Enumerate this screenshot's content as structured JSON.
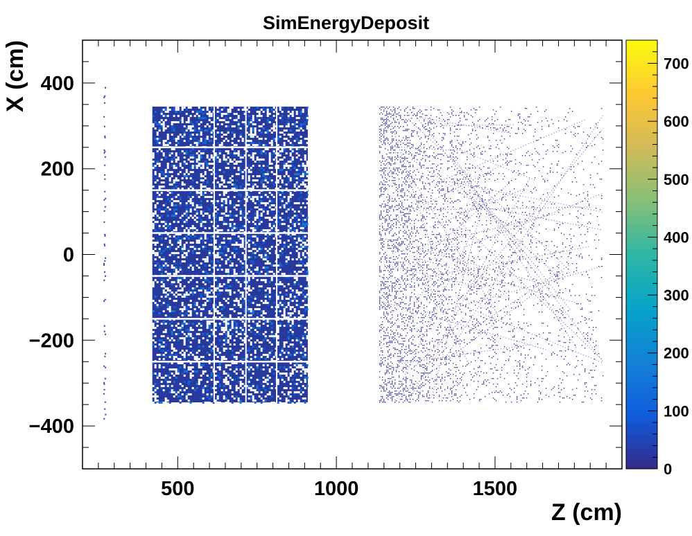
{
  "chart_data": {
    "type": "heatmap",
    "title": "SimEnergyDeposit",
    "xlabel": "Z (cm)",
    "ylabel": "X (cm)",
    "xlim": [
      200,
      1900
    ],
    "ylim": [
      -500,
      500
    ],
    "x_ticks": [
      500,
      1000,
      1500
    ],
    "x_tick_labels": [
      "500",
      "1000",
      "1500"
    ],
    "y_ticks": [
      -400,
      -200,
      0,
      200,
      400
    ],
    "y_tick_labels": [
      "−400",
      "−200",
      "0",
      "200",
      "400"
    ],
    "colorbar": {
      "range": [
        0,
        740
      ],
      "ticks": [
        0,
        100,
        200,
        300,
        400,
        500,
        600,
        700
      ],
      "tick_labels": [
        "0",
        "100",
        "200",
        "300",
        "400",
        "500",
        "600",
        "700"
      ],
      "colors": [
        "#352a87",
        "#0f5cdd",
        "#1481d6",
        "#06a4ca",
        "#2eb7a4",
        "#87bf77",
        "#d1bb59",
        "#fec832",
        "#f9fb0e"
      ]
    },
    "regions": [
      {
        "name": "upstream-strip",
        "z_range": [
          265,
          275
        ],
        "x_range": [
          -410,
          410
        ],
        "level": 40,
        "density": 0.25
      },
      {
        "name": "detector-block",
        "z_range": [
          420,
          910
        ],
        "x_range": [
          -345,
          345
        ],
        "level": 60,
        "density": 0.78,
        "gap_z": [
          615,
          715,
          812
        ],
        "gap_x": [
          -250,
          -150,
          -50,
          50,
          150,
          250
        ]
      },
      {
        "name": "downstream-tracks",
        "z_range": [
          1135,
          1840
        ],
        "x_range": [
          -345,
          345
        ],
        "level": 15,
        "density": 0.3
      }
    ],
    "grid": false,
    "legend": "none"
  }
}
